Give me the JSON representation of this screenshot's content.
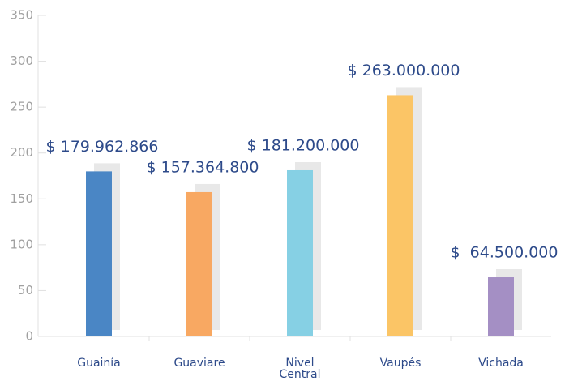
{
  "chart_data": {
    "type": "bar",
    "categories": [
      "Guainía",
      "Guaviare",
      "Nivel Central",
      "Vaupés",
      "Vichada"
    ],
    "values": [
      179.962866,
      157.3648,
      181.2,
      263,
      64.5
    ],
    "value_labels": [
      "$ 179.962.866",
      "$ 157.364.800",
      "$ 181.200.000",
      "$ 263.000.000",
      "$  64.500.000"
    ],
    "colors": [
      "#4a86c5",
      "#f8a862",
      "#86d0e4",
      "#fbc566",
      "#a48fc4"
    ],
    "ylim": [
      0,
      350
    ],
    "yticks": [
      0,
      50,
      100,
      150,
      200,
      250,
      300,
      350
    ]
  }
}
